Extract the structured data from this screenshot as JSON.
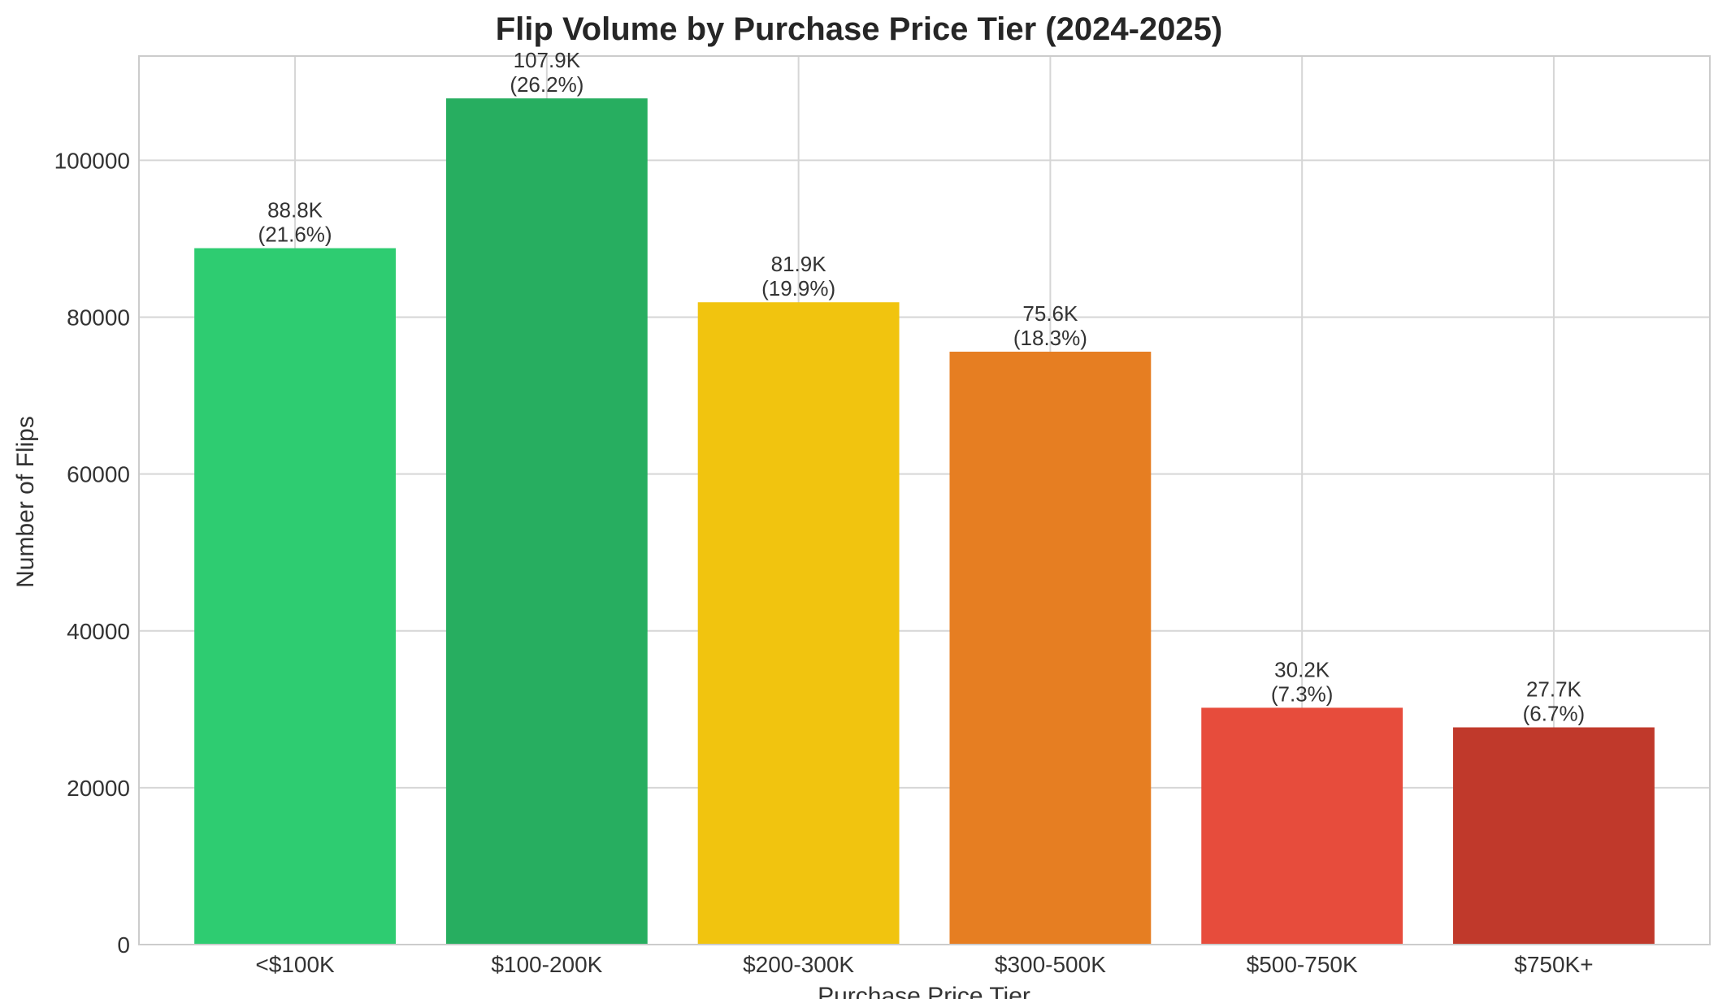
{
  "chart_data": {
    "type": "bar",
    "title": "Flip Volume by Purchase Price Tier (2024-2025)",
    "xlabel": "Purchase Price Tier",
    "ylabel": "Number of Flips",
    "categories": [
      "<$100K",
      "$100-200K",
      "$200-300K",
      "$300-500K",
      "$500-750K",
      "$750K+"
    ],
    "values": [
      88800,
      107900,
      81900,
      75600,
      30200,
      27700
    ],
    "value_labels": [
      "88.8K",
      "107.9K",
      "81.9K",
      "75.6K",
      "30.2K",
      "27.7K"
    ],
    "percent_labels": [
      "(21.6%)",
      "(26.2%)",
      "(19.9%)",
      "(18.3%)",
      "(7.3%)",
      "(6.7%)"
    ],
    "colors": [
      "#2ecc71",
      "#27ae60",
      "#f1c40f",
      "#e67e22",
      "#e74c3c",
      "#c0392b"
    ],
    "ylim": [
      0,
      113300
    ],
    "yticks": [
      0,
      20000,
      40000,
      60000,
      80000,
      100000
    ],
    "grid": true,
    "legend": "none"
  }
}
